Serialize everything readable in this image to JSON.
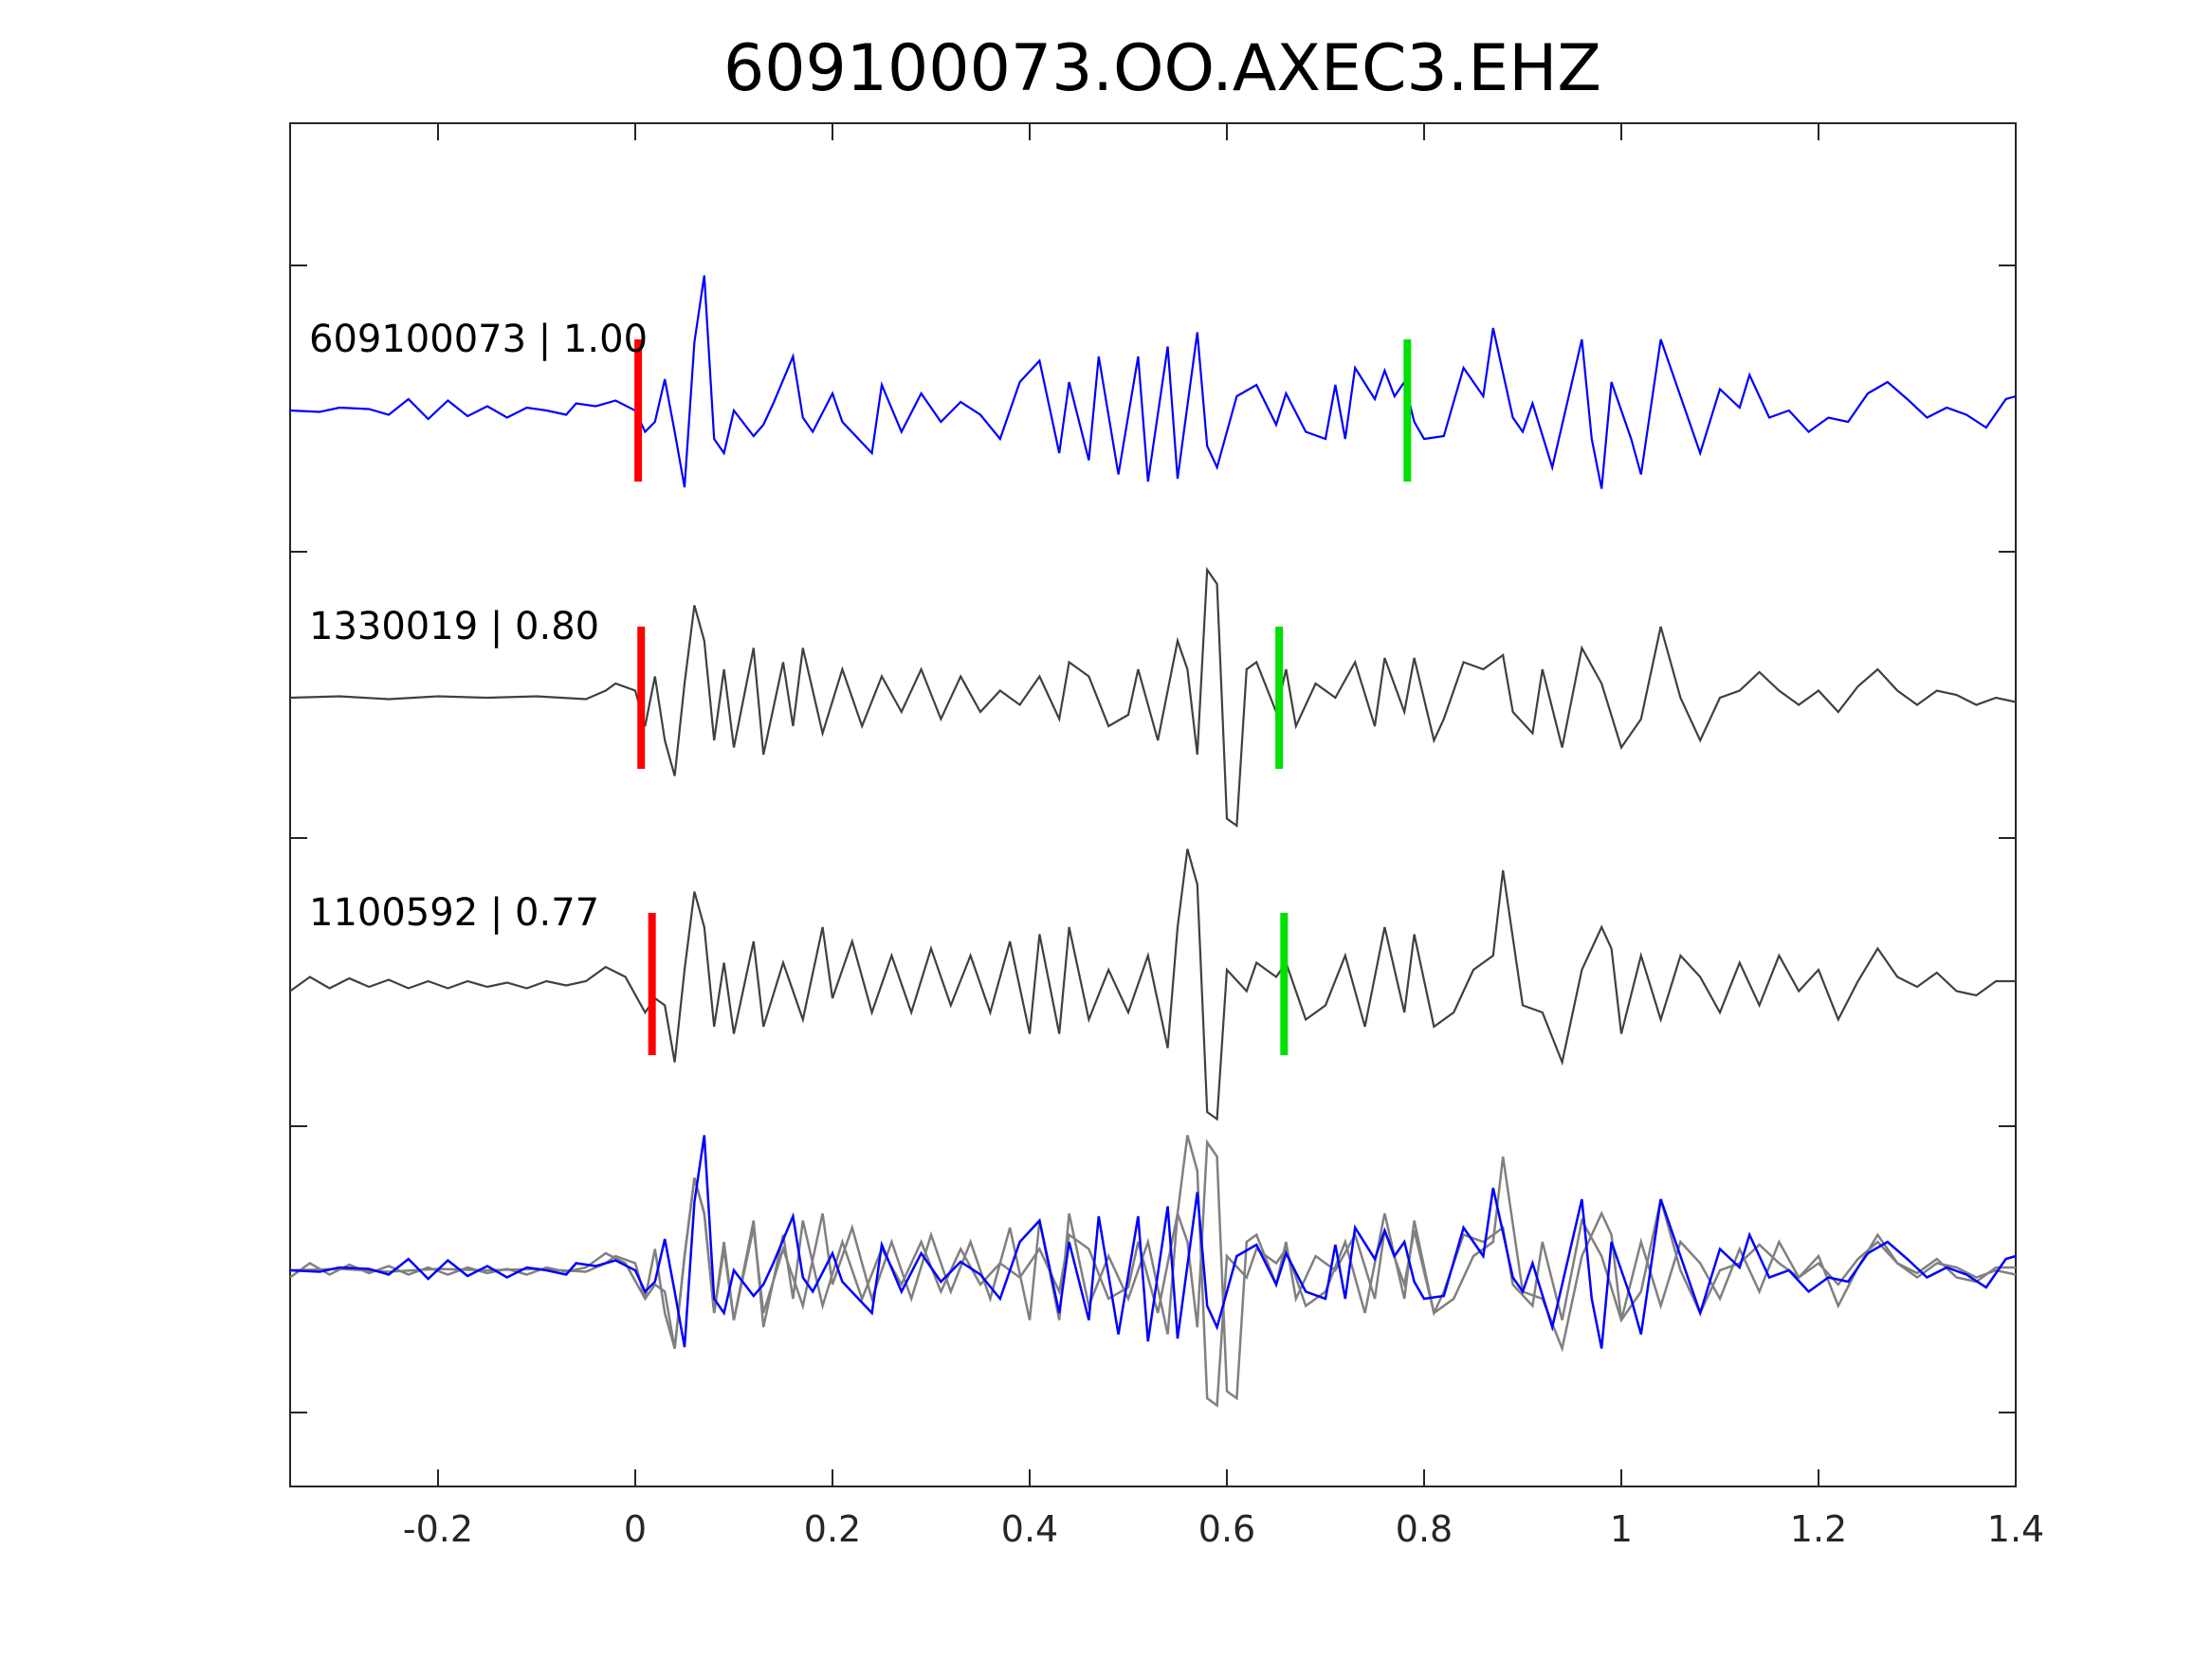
{
  "chart_data": {
    "type": "line",
    "title": "609100073.OO.AXEC3.EHZ",
    "xlabel": "",
    "ylabel": "",
    "xlim": [
      -0.35,
      1.4
    ],
    "xticks": [
      -0.2,
      0,
      0.2,
      0.4,
      0.6,
      0.8,
      1,
      1.2,
      1.4
    ],
    "xtick_labels": [
      "-0.2",
      "0",
      "0.2",
      "0.4",
      "0.6",
      "0.8",
      "1",
      "1.2",
      "1.4"
    ],
    "grid": false,
    "legend": "none",
    "colors": {
      "main": "#0000ff",
      "template": "#404040",
      "overlay": "#808080",
      "p_pick": "#ff0000",
      "s_pick": "#00e000"
    },
    "series": [
      {
        "label": "609100073 | 1.00",
        "color": "#0000ff",
        "p_pick": 0.003,
        "s_pick": 0.783,
        "points": [
          [
            -0.35,
            0
          ],
          [
            -0.32,
            -0.01
          ],
          [
            -0.3,
            0.02
          ],
          [
            -0.27,
            0.01
          ],
          [
            -0.25,
            -0.03
          ],
          [
            -0.23,
            0.08
          ],
          [
            -0.21,
            -0.06
          ],
          [
            -0.19,
            0.07
          ],
          [
            -0.17,
            -0.04
          ],
          [
            -0.15,
            0.03
          ],
          [
            -0.13,
            -0.05
          ],
          [
            -0.11,
            0.02
          ],
          [
            -0.09,
            0
          ],
          [
            -0.07,
            -0.03
          ],
          [
            -0.06,
            0.05
          ],
          [
            -0.04,
            0.03
          ],
          [
            -0.02,
            0.07
          ],
          [
            0,
            0
          ],
          [
            0.01,
            -0.15
          ],
          [
            0.02,
            -0.08
          ],
          [
            0.03,
            0.22
          ],
          [
            0.04,
            -0.15
          ],
          [
            0.05,
            -0.54
          ],
          [
            0.06,
            0.48
          ],
          [
            0.07,
            0.95
          ],
          [
            0.08,
            -0.2
          ],
          [
            0.09,
            -0.3
          ],
          [
            0.1,
            0
          ],
          [
            0.12,
            -0.18
          ],
          [
            0.13,
            -0.1
          ],
          [
            0.14,
            0.05
          ],
          [
            0.16,
            0.38
          ],
          [
            0.17,
            -0.05
          ],
          [
            0.18,
            -0.15
          ],
          [
            0.2,
            0.12
          ],
          [
            0.21,
            -0.08
          ],
          [
            0.24,
            -0.3
          ],
          [
            0.25,
            0.18
          ],
          [
            0.27,
            -0.15
          ],
          [
            0.29,
            0.12
          ],
          [
            0.31,
            -0.08
          ],
          [
            0.33,
            0.06
          ],
          [
            0.35,
            -0.03
          ],
          [
            0.37,
            -0.2
          ],
          [
            0.39,
            0.2
          ],
          [
            0.41,
            0.35
          ],
          [
            0.43,
            -0.3
          ],
          [
            0.44,
            0.2
          ],
          [
            0.46,
            -0.35
          ],
          [
            0.47,
            0.38
          ],
          [
            0.49,
            -0.45
          ],
          [
            0.51,
            0.38
          ],
          [
            0.52,
            -0.5
          ],
          [
            0.54,
            0.45
          ],
          [
            0.55,
            -0.48
          ],
          [
            0.57,
            0.55
          ],
          [
            0.58,
            -0.25
          ],
          [
            0.59,
            -0.4
          ],
          [
            0.61,
            0.1
          ],
          [
            0.63,
            0.18
          ],
          [
            0.65,
            -0.1
          ],
          [
            0.66,
            0.12
          ],
          [
            0.68,
            -0.15
          ],
          [
            0.7,
            -0.2
          ],
          [
            0.71,
            0.18
          ],
          [
            0.72,
            -0.2
          ],
          [
            0.73,
            0.3
          ],
          [
            0.75,
            0.08
          ],
          [
            0.76,
            0.28
          ],
          [
            0.77,
            0.1
          ],
          [
            0.78,
            0.2
          ],
          [
            0.79,
            -0.08
          ],
          [
            0.8,
            -0.2
          ],
          [
            0.82,
            -0.18
          ],
          [
            0.84,
            0.3
          ],
          [
            0.86,
            0.1
          ],
          [
            0.87,
            0.58
          ],
          [
            0.89,
            -0.05
          ],
          [
            0.9,
            -0.15
          ],
          [
            0.91,
            0.05
          ],
          [
            0.93,
            -0.4
          ],
          [
            0.95,
            0.2
          ],
          [
            0.96,
            0.5
          ],
          [
            0.97,
            -0.2
          ],
          [
            0.98,
            -0.55
          ],
          [
            0.99,
            0.2
          ],
          [
            1.01,
            -0.2
          ],
          [
            1.02,
            -0.45
          ],
          [
            1.04,
            0.5
          ],
          [
            1.06,
            0.1
          ],
          [
            1.08,
            -0.3
          ],
          [
            1.1,
            0.15
          ],
          [
            1.12,
            0.02
          ],
          [
            1.13,
            0.25
          ],
          [
            1.15,
            -0.05
          ],
          [
            1.17,
            0.0
          ],
          [
            1.19,
            -0.15
          ],
          [
            1.21,
            -0.05
          ],
          [
            1.23,
            -0.08
          ],
          [
            1.25,
            0.12
          ],
          [
            1.27,
            0.2
          ],
          [
            1.29,
            0.08
          ],
          [
            1.31,
            -0.05
          ],
          [
            1.33,
            0.02
          ],
          [
            1.35,
            -0.03
          ],
          [
            1.37,
            -0.12
          ],
          [
            1.39,
            0.08
          ],
          [
            1.4,
            0.1
          ]
        ]
      },
      {
        "label": "1330019 | 0.80",
        "color": "#404040",
        "p_pick": 0.006,
        "s_pick": 0.653,
        "points": [
          [
            -0.35,
            0
          ],
          [
            -0.3,
            0.01
          ],
          [
            -0.25,
            -0.01
          ],
          [
            -0.2,
            0.01
          ],
          [
            -0.15,
            0
          ],
          [
            -0.1,
            0.01
          ],
          [
            -0.05,
            -0.01
          ],
          [
            -0.03,
            0.05
          ],
          [
            -0.02,
            0.1
          ],
          [
            0,
            0.05
          ],
          [
            0.01,
            -0.2
          ],
          [
            0.02,
            0.15
          ],
          [
            0.03,
            -0.3
          ],
          [
            0.04,
            -0.55
          ],
          [
            0.05,
            0.1
          ],
          [
            0.06,
            0.65
          ],
          [
            0.07,
            0.4
          ],
          [
            0.08,
            -0.3
          ],
          [
            0.09,
            0.2
          ],
          [
            0.1,
            -0.35
          ],
          [
            0.12,
            0.35
          ],
          [
            0.13,
            -0.4
          ],
          [
            0.15,
            0.25
          ],
          [
            0.16,
            -0.2
          ],
          [
            0.17,
            0.35
          ],
          [
            0.19,
            -0.25
          ],
          [
            0.21,
            0.2
          ],
          [
            0.23,
            -0.2
          ],
          [
            0.25,
            0.15
          ],
          [
            0.27,
            -0.1
          ],
          [
            0.29,
            0.2
          ],
          [
            0.31,
            -0.15
          ],
          [
            0.33,
            0.15
          ],
          [
            0.35,
            -0.1
          ],
          [
            0.37,
            0.05
          ],
          [
            0.39,
            -0.05
          ],
          [
            0.41,
            0.15
          ],
          [
            0.43,
            -0.15
          ],
          [
            0.44,
            0.25
          ],
          [
            0.46,
            0.15
          ],
          [
            0.48,
            -0.2
          ],
          [
            0.5,
            -0.12
          ],
          [
            0.51,
            0.2
          ],
          [
            0.53,
            -0.3
          ],
          [
            0.55,
            0.4
          ],
          [
            0.56,
            0.2
          ],
          [
            0.57,
            -0.4
          ],
          [
            0.58,
            0.9
          ],
          [
            0.59,
            0.8
          ],
          [
            0.6,
            -0.85
          ],
          [
            0.61,
            -0.9
          ],
          [
            0.62,
            0.2
          ],
          [
            0.63,
            0.25
          ],
          [
            0.65,
            -0.1
          ],
          [
            0.66,
            0.2
          ],
          [
            0.67,
            -0.2
          ],
          [
            0.69,
            0.1
          ],
          [
            0.71,
            0.0
          ],
          [
            0.73,
            0.25
          ],
          [
            0.75,
            -0.2
          ],
          [
            0.76,
            0.28
          ],
          [
            0.78,
            -0.1
          ],
          [
            0.79,
            0.28
          ],
          [
            0.81,
            -0.3
          ],
          [
            0.82,
            -0.15
          ],
          [
            0.84,
            0.25
          ],
          [
            0.86,
            0.2
          ],
          [
            0.88,
            0.3
          ],
          [
            0.89,
            -0.1
          ],
          [
            0.91,
            -0.25
          ],
          [
            0.92,
            0.2
          ],
          [
            0.94,
            -0.35
          ],
          [
            0.96,
            0.35
          ],
          [
            0.98,
            0.1
          ],
          [
            1,
            -0.35
          ],
          [
            1.02,
            -0.15
          ],
          [
            1.04,
            0.5
          ],
          [
            1.06,
            0.0
          ],
          [
            1.08,
            -0.3
          ],
          [
            1.1,
            0.0
          ],
          [
            1.12,
            0.05
          ],
          [
            1.14,
            0.18
          ],
          [
            1.16,
            0.05
          ],
          [
            1.18,
            -0.05
          ],
          [
            1.2,
            0.05
          ],
          [
            1.22,
            -0.1
          ],
          [
            1.24,
            0.08
          ],
          [
            1.26,
            0.2
          ],
          [
            1.28,
            0.05
          ],
          [
            1.3,
            -0.05
          ],
          [
            1.32,
            0.05
          ],
          [
            1.34,
            0.02
          ],
          [
            1.36,
            -0.05
          ],
          [
            1.38,
            0.0
          ],
          [
            1.4,
            -0.03
          ]
        ]
      },
      {
        "label": "1100592 | 0.77",
        "color": "#404040",
        "p_pick": 0.017,
        "s_pick": 0.658,
        "points": [
          [
            -0.35,
            -0.05
          ],
          [
            -0.33,
            0.05
          ],
          [
            -0.31,
            -0.03
          ],
          [
            -0.29,
            0.04
          ],
          [
            -0.27,
            -0.02
          ],
          [
            -0.25,
            0.03
          ],
          [
            -0.23,
            -0.03
          ],
          [
            -0.21,
            0.02
          ],
          [
            -0.19,
            -0.03
          ],
          [
            -0.17,
            0.02
          ],
          [
            -0.15,
            -0.02
          ],
          [
            -0.13,
            0.01
          ],
          [
            -0.11,
            -0.03
          ],
          [
            -0.09,
            0.02
          ],
          [
            -0.07,
            -0.01
          ],
          [
            -0.05,
            0.02
          ],
          [
            -0.03,
            0.12
          ],
          [
            -0.01,
            0.05
          ],
          [
            0.01,
            -0.2
          ],
          [
            0.02,
            -0.1
          ],
          [
            0.03,
            -0.15
          ],
          [
            0.04,
            -0.55
          ],
          [
            0.05,
            0.1
          ],
          [
            0.06,
            0.65
          ],
          [
            0.07,
            0.4
          ],
          [
            0.08,
            -0.3
          ],
          [
            0.09,
            0.15
          ],
          [
            0.1,
            -0.35
          ],
          [
            0.12,
            0.3
          ],
          [
            0.13,
            -0.3
          ],
          [
            0.15,
            0.15
          ],
          [
            0.17,
            -0.25
          ],
          [
            0.19,
            0.4
          ],
          [
            0.2,
            -0.1
          ],
          [
            0.22,
            0.3
          ],
          [
            0.24,
            -0.2
          ],
          [
            0.26,
            0.2
          ],
          [
            0.28,
            -0.2
          ],
          [
            0.3,
            0.25
          ],
          [
            0.32,
            -0.15
          ],
          [
            0.34,
            0.2
          ],
          [
            0.36,
            -0.2
          ],
          [
            0.38,
            0.3
          ],
          [
            0.4,
            -0.35
          ],
          [
            0.41,
            0.35
          ],
          [
            0.43,
            -0.35
          ],
          [
            0.44,
            0.4
          ],
          [
            0.46,
            -0.25
          ],
          [
            0.48,
            0.1
          ],
          [
            0.5,
            -0.2
          ],
          [
            0.52,
            0.2
          ],
          [
            0.54,
            -0.45
          ],
          [
            0.55,
            0.4
          ],
          [
            0.56,
            0.95
          ],
          [
            0.57,
            0.7
          ],
          [
            0.58,
            -0.9
          ],
          [
            0.59,
            -0.95
          ],
          [
            0.6,
            0.1
          ],
          [
            0.62,
            -0.05
          ],
          [
            0.63,
            0.15
          ],
          [
            0.65,
            0.05
          ],
          [
            0.66,
            0.15
          ],
          [
            0.68,
            -0.25
          ],
          [
            0.7,
            -0.15
          ],
          [
            0.72,
            0.2
          ],
          [
            0.74,
            -0.3
          ],
          [
            0.76,
            0.4
          ],
          [
            0.78,
            -0.2
          ],
          [
            0.79,
            0.35
          ],
          [
            0.81,
            -0.3
          ],
          [
            0.83,
            -0.2
          ],
          [
            0.85,
            0.1
          ],
          [
            0.87,
            0.2
          ],
          [
            0.88,
            0.8
          ],
          [
            0.9,
            -0.15
          ],
          [
            0.92,
            -0.2
          ],
          [
            0.94,
            -0.55
          ],
          [
            0.96,
            0.1
          ],
          [
            0.98,
            0.4
          ],
          [
            0.99,
            0.25
          ],
          [
            1,
            -0.35
          ],
          [
            1.02,
            0.2
          ],
          [
            1.04,
            -0.25
          ],
          [
            1.06,
            0.2
          ],
          [
            1.08,
            0.05
          ],
          [
            1.1,
            -0.2
          ],
          [
            1.12,
            0.15
          ],
          [
            1.14,
            -0.15
          ],
          [
            1.16,
            0.2
          ],
          [
            1.18,
            -0.05
          ],
          [
            1.2,
            0.1
          ],
          [
            1.22,
            -0.25
          ],
          [
            1.24,
            0.02
          ],
          [
            1.26,
            0.25
          ],
          [
            1.28,
            0.05
          ],
          [
            1.3,
            -0.02
          ],
          [
            1.32,
            0.08
          ],
          [
            1.34,
            -0.05
          ],
          [
            1.36,
            -0.08
          ],
          [
            1.38,
            0.02
          ],
          [
            1.4,
            0.02
          ]
        ]
      }
    ],
    "overlay": {
      "main_color": "#0000ff",
      "template_color": "#808080",
      "description_of_series": [
        "609100073 | 1.00",
        "1330019 | 0.80",
        "1100592 | 0.77"
      ]
    }
  }
}
